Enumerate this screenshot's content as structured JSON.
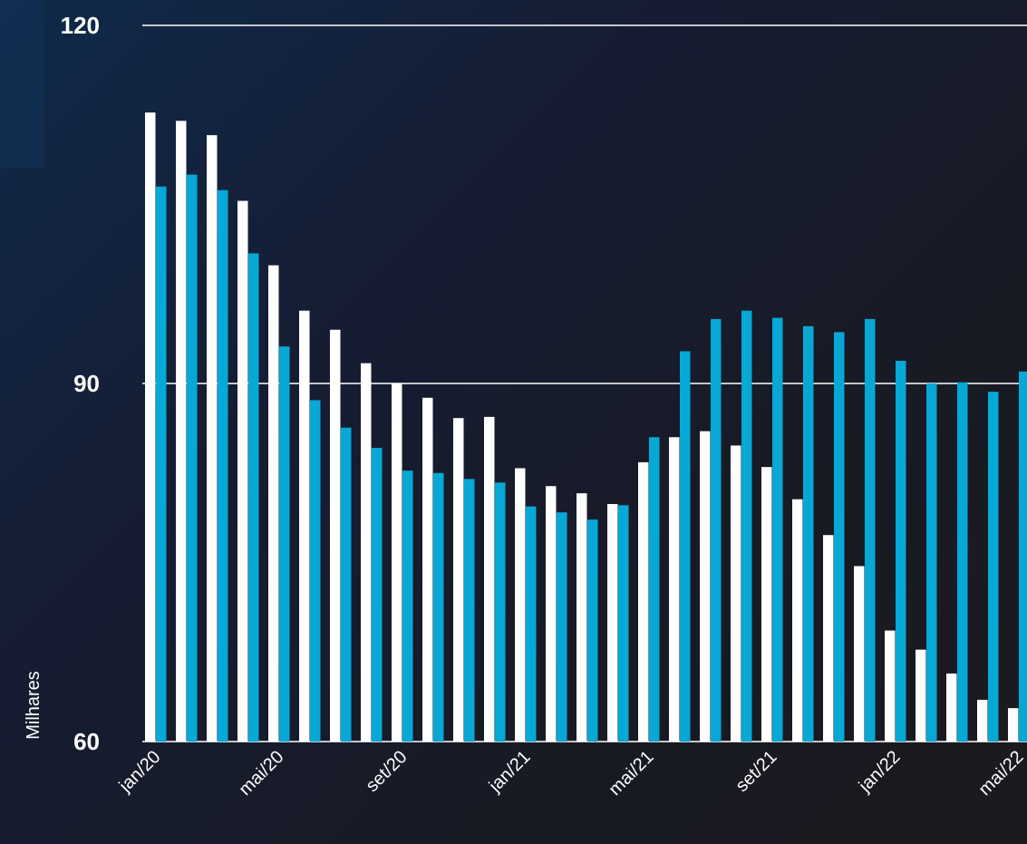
{
  "chart_data": {
    "type": "bar",
    "title": "",
    "xlabel": "",
    "ylabel": "Milhares",
    "ylim": [
      60,
      120
    ],
    "yticks": [
      60,
      90,
      120
    ],
    "grid": true,
    "legend": "none",
    "categories": [
      "jan/20",
      "fev/20",
      "mar/20",
      "abr/20",
      "mai/20",
      "jun/20",
      "jul/20",
      "ago/20",
      "set/20",
      "out/20",
      "nov/20",
      "dez/20",
      "jan/21",
      "fev/21",
      "mar/21",
      "abr/21",
      "mai/21",
      "jun/21",
      "jul/21",
      "ago/21",
      "set/21",
      "out/21",
      "nov/21",
      "dez/21",
      "jan/22",
      "fev/22",
      "mar/22",
      "abr/22",
      "mai/22"
    ],
    "xtick_labels": [
      "jan/20",
      "mai/20",
      "set/20",
      "jan/21",
      "mai/21",
      "set/21",
      "jan/22",
      "mai/22"
    ],
    "xtick_indices": [
      0,
      4,
      8,
      12,
      16,
      20,
      24,
      28
    ],
    "series": [
      {
        "color": "#ffffff",
        "values": [
          112.7,
          112.0,
          110.8,
          105.3,
          99.9,
          96.1,
          94.5,
          91.7,
          90.0,
          88.8,
          87.1,
          87.2,
          82.9,
          81.4,
          80.8,
          79.9,
          83.4,
          85.5,
          86.0,
          84.8,
          83.0,
          80.3,
          77.3,
          74.7,
          69.3,
          67.7,
          65.7,
          63.5,
          62.8
        ]
      },
      {
        "color": "#06a8d6",
        "values": [
          106.5,
          107.5,
          106.2,
          100.9,
          93.1,
          88.6,
          86.3,
          84.6,
          82.7,
          82.5,
          82.0,
          81.7,
          79.7,
          79.2,
          78.6,
          79.8,
          85.5,
          92.7,
          95.4,
          96.1,
          95.5,
          94.8,
          94.3,
          95.4,
          91.9,
          90.0,
          90.1,
          89.3,
          91.0
        ]
      }
    ]
  }
}
